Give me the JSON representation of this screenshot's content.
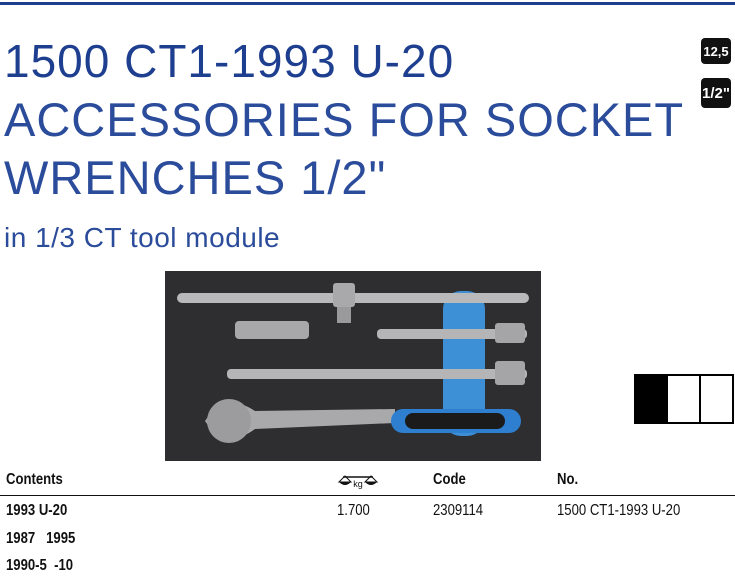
{
  "header": {
    "title": "1500 CT1-1993 U-20",
    "subtitle_lines": [
      "ACCESSORIES FOR SOCKET",
      "WRENCHES 1/2\""
    ],
    "module": "in 1/3 CT tool module"
  },
  "badges": [
    "12,5",
    "1/2\""
  ],
  "table": {
    "columns": [
      "Contents",
      "kg",
      "Code",
      "No."
    ],
    "rows": [
      [
        "1993 U-20",
        "1.700",
        "2309114",
        "1500 CT1-1993 U-20"
      ],
      [
        "1987   1995"
      ],
      [
        "1990-5  -10"
      ]
    ]
  }
}
